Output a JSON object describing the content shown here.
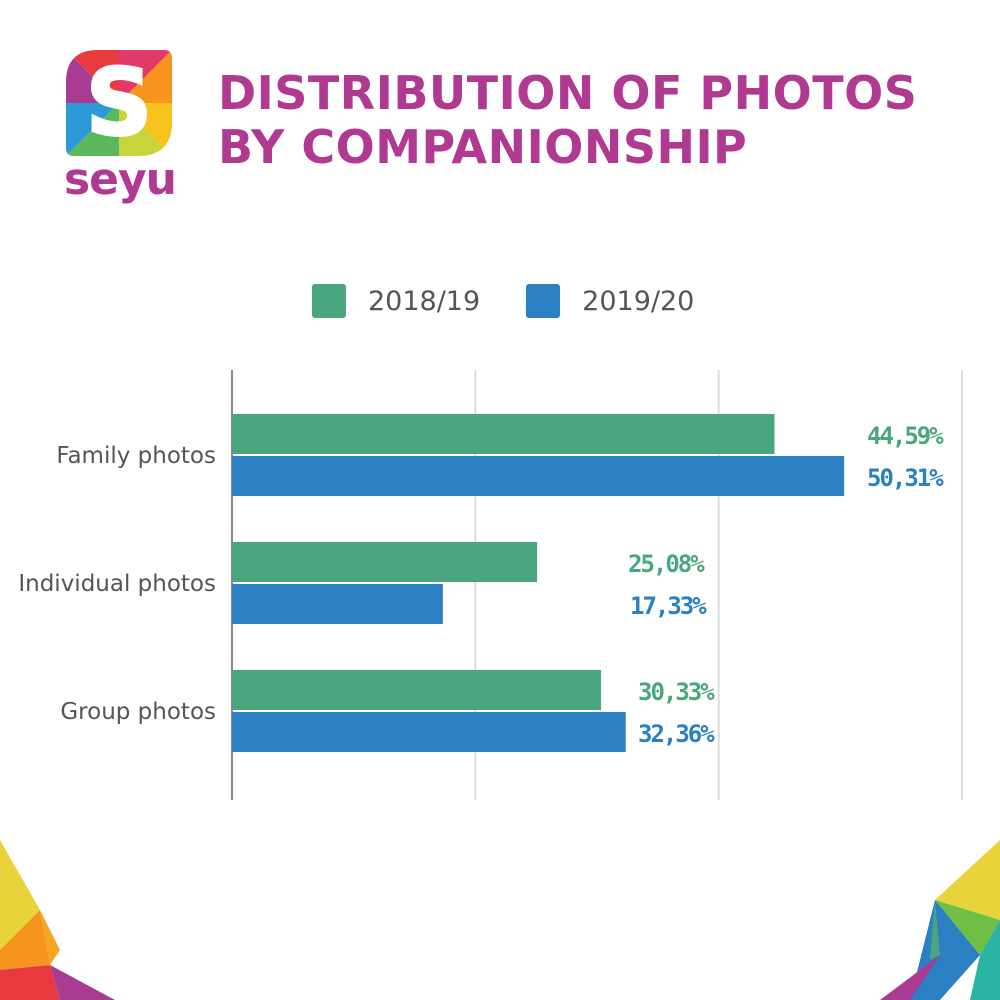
{
  "brand": {
    "name": "seyu",
    "logo_letter": "S"
  },
  "title": {
    "line1": "DISTRIBUTION OF PHOTOS",
    "line2": "BY COMPANIONSHIP"
  },
  "colors": {
    "title": "#b03a91",
    "series_2018_19": "#4aa67e",
    "series_2019_20": "#2a80c3",
    "category_text": "#555555",
    "grid": "#dddddd",
    "axis": "#888888"
  },
  "chart_data": {
    "type": "bar",
    "orientation": "horizontal",
    "categories": [
      "Family photos",
      "Individual photos",
      "Group photos"
    ],
    "series": [
      {
        "name": "2018/19",
        "values": [
          44.59,
          25.08,
          30.33
        ],
        "labels": [
          "44,59%",
          "25,08%",
          "30,33%"
        ],
        "color": "#4aa67e"
      },
      {
        "name": "2019/20",
        "values": [
          50.31,
          17.33,
          32.36
        ],
        "labels": [
          "50,31%",
          "17,33%",
          "32,36%"
        ],
        "color": "#2a80c3"
      }
    ],
    "xlim": [
      0,
      60
    ],
    "grid": true,
    "legend": "top-center"
  }
}
